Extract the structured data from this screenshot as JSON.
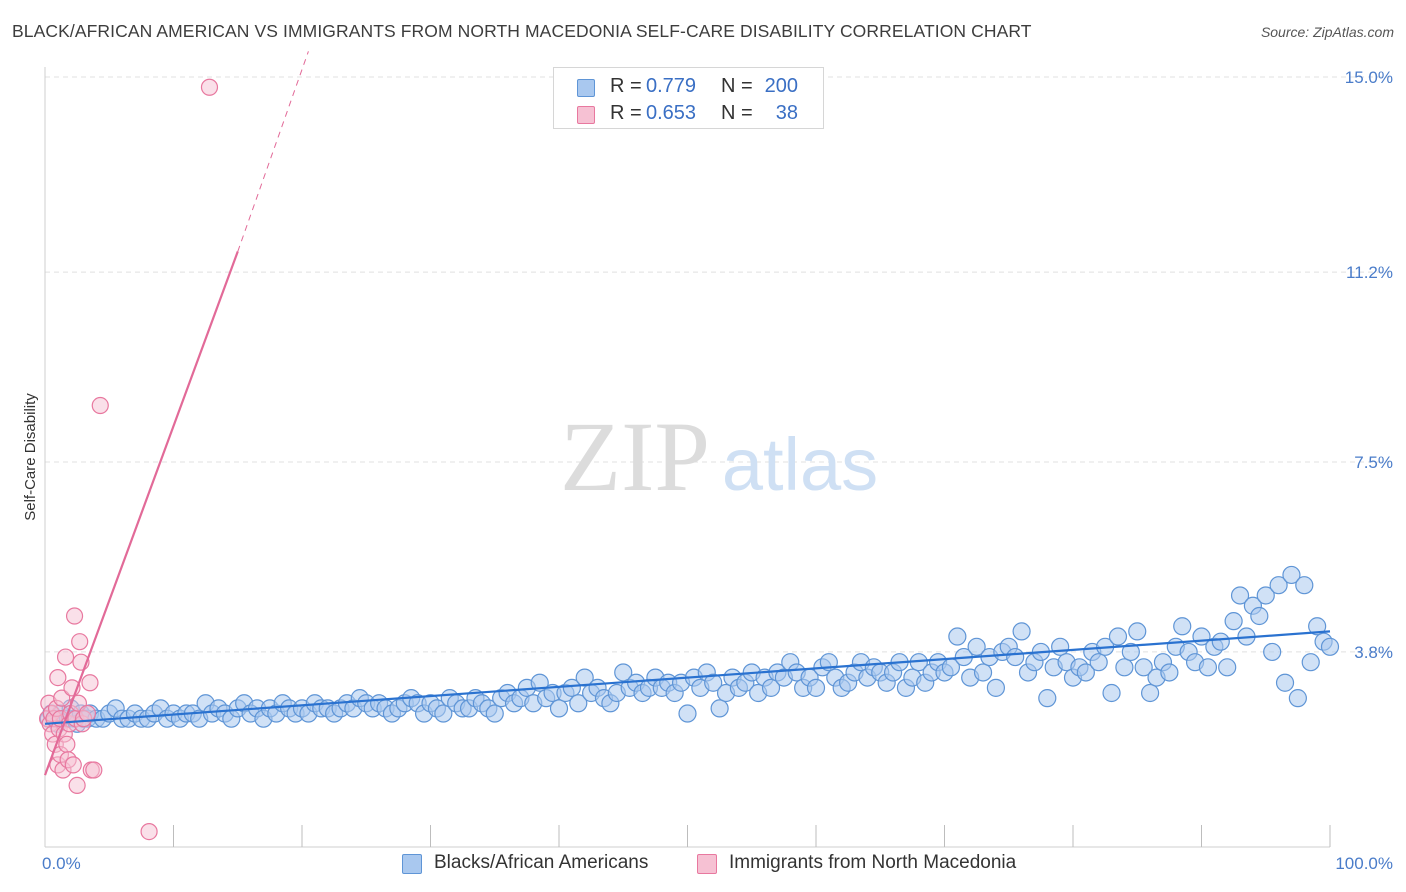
{
  "title": "BLACK/AFRICAN AMERICAN VS IMMIGRANTS FROM NORTH MACEDONIA SELF-CARE DISABILITY CORRELATION CHART",
  "source": "Source: ZipAtlas.com",
  "colors": {
    "blue_fill": "#a9c8ef",
    "blue_stroke": "#5f95d6",
    "blue_line": "#2a72d0",
    "pink_fill": "#f6c1d3",
    "pink_stroke": "#e8789f",
    "pink_line": "#e26a98",
    "grid": "#e0e0e0",
    "axis_text": "#4a7cc9"
  },
  "legend_top": [
    {
      "r_label": "R =",
      "r_value": "0.779",
      "n_label": "N =",
      "n_value": "200",
      "series": "blue"
    },
    {
      "r_label": "R =",
      "r_value": "0.653",
      "n_label": "N =",
      "n_value": "38",
      "series": "pink"
    }
  ],
  "legend_bottom": [
    {
      "label": "Blacks/African Americans",
      "series": "blue"
    },
    {
      "label": "Immigrants from North Macedonia",
      "series": "pink"
    }
  ],
  "watermark": {
    "zip": "ZIP",
    "atlas": "atlas"
  },
  "chart_data": {
    "type": "scatter",
    "title": "BLACK/AFRICAN AMERICAN VS IMMIGRANTS FROM NORTH MACEDONIA SELF-CARE DISABILITY CORRELATION CHART",
    "xlabel": "",
    "ylabel": "Self-Care Disability",
    "xlim": [
      0,
      100
    ],
    "ylim": [
      0,
      15.0
    ],
    "x_tick_labels": [
      {
        "value": 0,
        "label": "0.0%"
      },
      {
        "value": 100,
        "label": "100.0%"
      }
    ],
    "y_ticks": [
      {
        "value": 3.8,
        "label": "3.8%"
      },
      {
        "value": 7.5,
        "label": "7.5%"
      },
      {
        "value": 11.2,
        "label": "11.2%"
      },
      {
        "value": 15.0,
        "label": "15.0%"
      }
    ],
    "series": [
      {
        "name": "Blacks/African Americans",
        "r": 0.779,
        "n": 200,
        "trend": {
          "x": [
            0,
            100
          ],
          "y": [
            2.4,
            4.2
          ]
        },
        "points": [
          [
            0.3,
            2.5
          ],
          [
            0.5,
            2.6
          ],
          [
            0.8,
            2.5
          ],
          [
            1,
            2.4
          ],
          [
            1.2,
            2.6
          ],
          [
            1.5,
            2.5
          ],
          [
            1.8,
            2.5
          ],
          [
            2,
            2.7
          ],
          [
            2.3,
            2.5
          ],
          [
            2.5,
            2.4
          ],
          [
            2.8,
            2.6
          ],
          [
            3,
            2.5
          ],
          [
            3.3,
            2.5
          ],
          [
            3.5,
            2.6
          ],
          [
            4,
            2.5
          ],
          [
            4.5,
            2.5
          ],
          [
            5,
            2.6
          ],
          [
            5.5,
            2.7
          ],
          [
            6,
            2.5
          ],
          [
            6.5,
            2.5
          ],
          [
            7,
            2.6
          ],
          [
            7.5,
            2.5
          ],
          [
            8,
            2.5
          ],
          [
            8.5,
            2.6
          ],
          [
            9,
            2.7
          ],
          [
            9.5,
            2.5
          ],
          [
            10,
            2.6
          ],
          [
            10.5,
            2.5
          ],
          [
            11,
            2.6
          ],
          [
            11.5,
            2.6
          ],
          [
            12,
            2.5
          ],
          [
            12.5,
            2.8
          ],
          [
            13,
            2.6
          ],
          [
            13.5,
            2.7
          ],
          [
            14,
            2.6
          ],
          [
            14.5,
            2.5
          ],
          [
            15,
            2.7
          ],
          [
            15.5,
            2.8
          ],
          [
            16,
            2.6
          ],
          [
            16.5,
            2.7
          ],
          [
            17,
            2.5
          ],
          [
            17.5,
            2.7
          ],
          [
            18,
            2.6
          ],
          [
            18.5,
            2.8
          ],
          [
            19,
            2.7
          ],
          [
            19.5,
            2.6
          ],
          [
            20,
            2.7
          ],
          [
            20.5,
            2.6
          ],
          [
            21,
            2.8
          ],
          [
            21.5,
            2.7
          ],
          [
            22,
            2.7
          ],
          [
            22.5,
            2.6
          ],
          [
            23,
            2.7
          ],
          [
            23.5,
            2.8
          ],
          [
            24,
            2.7
          ],
          [
            24.5,
            2.9
          ],
          [
            25,
            2.8
          ],
          [
            25.5,
            2.7
          ],
          [
            26,
            2.8
          ],
          [
            26.5,
            2.7
          ],
          [
            27,
            2.6
          ],
          [
            27.5,
            2.7
          ],
          [
            28,
            2.8
          ],
          [
            28.5,
            2.9
          ],
          [
            29,
            2.8
          ],
          [
            29.5,
            2.6
          ],
          [
            30,
            2.8
          ],
          [
            30.5,
            2.7
          ],
          [
            31,
            2.6
          ],
          [
            31.5,
            2.9
          ],
          [
            32,
            2.8
          ],
          [
            32.5,
            2.7
          ],
          [
            33,
            2.7
          ],
          [
            33.5,
            2.9
          ],
          [
            34,
            2.8
          ],
          [
            34.5,
            2.7
          ],
          [
            35,
            2.6
          ],
          [
            35.5,
            2.9
          ],
          [
            36,
            3.0
          ],
          [
            36.5,
            2.8
          ],
          [
            37,
            2.9
          ],
          [
            37.5,
            3.1
          ],
          [
            38,
            2.8
          ],
          [
            38.5,
            3.2
          ],
          [
            39,
            2.9
          ],
          [
            39.5,
            3.0
          ],
          [
            40,
            2.7
          ],
          [
            40.5,
            3.0
          ],
          [
            41,
            3.1
          ],
          [
            41.5,
            2.8
          ],
          [
            42,
            3.3
          ],
          [
            42.5,
            3.0
          ],
          [
            43,
            3.1
          ],
          [
            43.5,
            2.9
          ],
          [
            44,
            2.8
          ],
          [
            44.5,
            3.0
          ],
          [
            45,
            3.4
          ],
          [
            45.5,
            3.1
          ],
          [
            46,
            3.2
          ],
          [
            46.5,
            3.0
          ],
          [
            47,
            3.1
          ],
          [
            47.5,
            3.3
          ],
          [
            48,
            3.1
          ],
          [
            48.5,
            3.2
          ],
          [
            49,
            3.0
          ],
          [
            49.5,
            3.2
          ],
          [
            50,
            2.6
          ],
          [
            50.5,
            3.3
          ],
          [
            51,
            3.1
          ],
          [
            51.5,
            3.4
          ],
          [
            52,
            3.2
          ],
          [
            52.5,
            2.7
          ],
          [
            53,
            3.0
          ],
          [
            53.5,
            3.3
          ],
          [
            54,
            3.1
          ],
          [
            54.5,
            3.2
          ],
          [
            55,
            3.4
          ],
          [
            55.5,
            3.0
          ],
          [
            56,
            3.3
          ],
          [
            56.5,
            3.1
          ],
          [
            57,
            3.4
          ],
          [
            57.5,
            3.3
          ],
          [
            58,
            3.6
          ],
          [
            58.5,
            3.4
          ],
          [
            59,
            3.1
          ],
          [
            59.5,
            3.3
          ],
          [
            60,
            3.1
          ],
          [
            60.5,
            3.5
          ],
          [
            61,
            3.6
          ],
          [
            61.5,
            3.3
          ],
          [
            62,
            3.1
          ],
          [
            62.5,
            3.2
          ],
          [
            63,
            3.4
          ],
          [
            63.5,
            3.6
          ],
          [
            64,
            3.3
          ],
          [
            64.5,
            3.5
          ],
          [
            65,
            3.4
          ],
          [
            65.5,
            3.2
          ],
          [
            66,
            3.4
          ],
          [
            66.5,
            3.6
          ],
          [
            67,
            3.1
          ],
          [
            67.5,
            3.3
          ],
          [
            68,
            3.6
          ],
          [
            68.5,
            3.2
          ],
          [
            69,
            3.4
          ],
          [
            69.5,
            3.6
          ],
          [
            70,
            3.4
          ],
          [
            70.5,
            3.5
          ],
          [
            71,
            4.1
          ],
          [
            71.5,
            3.7
          ],
          [
            72,
            3.3
          ],
          [
            72.5,
            3.9
          ],
          [
            73,
            3.4
          ],
          [
            73.5,
            3.7
          ],
          [
            74,
            3.1
          ],
          [
            74.5,
            3.8
          ],
          [
            75,
            3.9
          ],
          [
            75.5,
            3.7
          ],
          [
            76,
            4.2
          ],
          [
            76.5,
            3.4
          ],
          [
            77,
            3.6
          ],
          [
            77.5,
            3.8
          ],
          [
            78,
            2.9
          ],
          [
            78.5,
            3.5
          ],
          [
            79,
            3.9
          ],
          [
            79.5,
            3.6
          ],
          [
            80,
            3.3
          ],
          [
            80.5,
            3.5
          ],
          [
            81,
            3.4
          ],
          [
            81.5,
            3.8
          ],
          [
            82,
            3.6
          ],
          [
            82.5,
            3.9
          ],
          [
            83,
            3.0
          ],
          [
            83.5,
            4.1
          ],
          [
            84,
            3.5
          ],
          [
            84.5,
            3.8
          ],
          [
            85,
            4.2
          ],
          [
            85.5,
            3.5
          ],
          [
            86,
            3.0
          ],
          [
            86.5,
            3.3
          ],
          [
            87,
            3.6
          ],
          [
            87.5,
            3.4
          ],
          [
            88,
            3.9
          ],
          [
            88.5,
            4.3
          ],
          [
            89,
            3.8
          ],
          [
            89.5,
            3.6
          ],
          [
            90,
            4.1
          ],
          [
            90.5,
            3.5
          ],
          [
            91,
            3.9
          ],
          [
            91.5,
            4.0
          ],
          [
            92,
            3.5
          ],
          [
            92.5,
            4.4
          ],
          [
            93,
            4.9
          ],
          [
            93.5,
            4.1
          ],
          [
            94,
            4.7
          ],
          [
            94.5,
            4.5
          ],
          [
            95,
            4.9
          ],
          [
            95.5,
            3.8
          ],
          [
            96,
            5.1
          ],
          [
            96.5,
            3.2
          ],
          [
            97,
            5.3
          ],
          [
            97.5,
            2.9
          ],
          [
            98,
            5.1
          ],
          [
            98.5,
            3.6
          ],
          [
            99,
            4.3
          ],
          [
            99.5,
            4.0
          ],
          [
            100,
            3.9
          ]
        ]
      },
      {
        "name": "Immigrants from North Macedonia",
        "r": 0.653,
        "n": 38,
        "trend": {
          "x": [
            0,
            15
          ],
          "y": [
            1.4,
            11.6
          ]
        },
        "trend_dashed": {
          "x": [
            15,
            20.5
          ],
          "y": [
            11.6,
            15.5
          ]
        },
        "points": [
          [
            0.2,
            2.5
          ],
          [
            0.3,
            2.8
          ],
          [
            0.4,
            2.4
          ],
          [
            0.5,
            2.6
          ],
          [
            0.6,
            2.2
          ],
          [
            0.7,
            2.5
          ],
          [
            0.8,
            2.0
          ],
          [
            0.9,
            2.7
          ],
          [
            1,
            1.6
          ],
          [
            1,
            3.3
          ],
          [
            1.1,
            2.3
          ],
          [
            1.2,
            1.8
          ],
          [
            1.2,
            2.5
          ],
          [
            1.3,
            2.9
          ],
          [
            1.4,
            1.5
          ],
          [
            1.5,
            2.2
          ],
          [
            1.6,
            3.7
          ],
          [
            1.7,
            2.0
          ],
          [
            1.8,
            1.7
          ],
          [
            1.9,
            2.4
          ],
          [
            2,
            2.6
          ],
          [
            2.1,
            3.1
          ],
          [
            2.2,
            1.6
          ],
          [
            2.3,
            4.5
          ],
          [
            2.4,
            2.5
          ],
          [
            2.5,
            1.2
          ],
          [
            2.6,
            2.8
          ],
          [
            2.7,
            4.0
          ],
          [
            2.8,
            3.6
          ],
          [
            2.9,
            2.4
          ],
          [
            3,
            2.5
          ],
          [
            3.3,
            2.6
          ],
          [
            3.5,
            3.2
          ],
          [
            3.6,
            1.5
          ],
          [
            3.8,
            1.5
          ],
          [
            4.3,
            8.6
          ],
          [
            8.1,
            0.3
          ],
          [
            12.8,
            14.8
          ]
        ]
      }
    ]
  }
}
